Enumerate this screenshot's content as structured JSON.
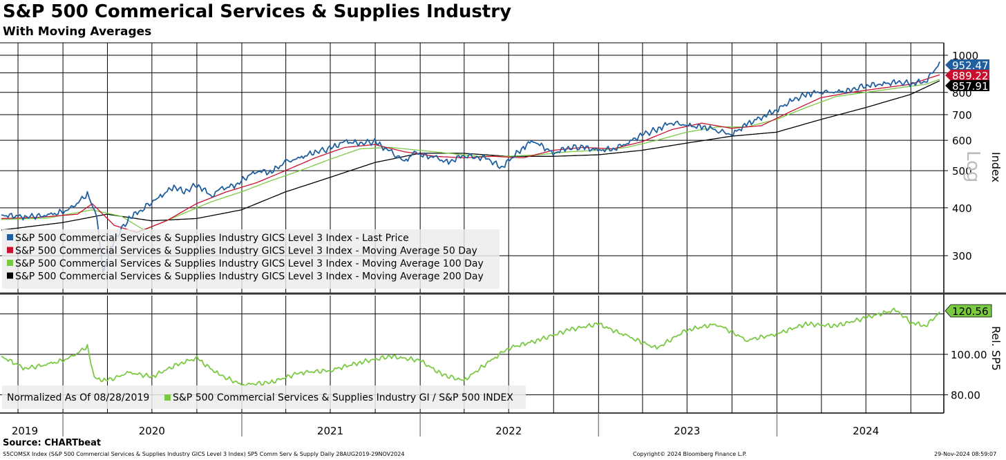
{
  "header": {
    "title": "S&P 500 Commerical Services & Supplies Industry",
    "subtitle": "With Moving Averages"
  },
  "footer": {
    "source": "Source: CHARTbeat",
    "description": "S5COMSX Index (S&P 500 Commercial Services & Supplies Industry GICS Level 3 Index) SP5 Comm Serv & Supply  Daily 28AUG2019-29NOV2024",
    "copyright": "Copyright© 2024 Bloomberg Finance L.P.",
    "timestamp": "29-Nov-2024 08:59:07"
  },
  "chart_data": [
    {
      "type": "line",
      "y_scale": "log",
      "ylabel": "Index",
      "scale_label": "Log",
      "ylim": [
        240,
        1000
      ],
      "yticks": [
        1000,
        900,
        800,
        700,
        600,
        500,
        400,
        300
      ],
      "grid": true,
      "legend_position": "bottom-left",
      "x_categories": [
        "2019",
        "2020",
        "2021",
        "2022",
        "2023",
        "2024"
      ],
      "x_range": [
        "2019-08-28",
        "2024-11-29"
      ],
      "last_values": [
        {
          "label": "952.47",
          "color": "#1f5fa0"
        },
        {
          "label": "889.22",
          "color": "#c8102e"
        },
        {
          "label": "857.91",
          "color": "#000000"
        }
      ],
      "series": [
        {
          "name": "S&P 500 Commercial Services & Supplies Industry GICS Level 3 Index - Last Price",
          "color": "#1f5fa0",
          "x": [
            "2019-08-28",
            "2019-10-15",
            "2019-12-01",
            "2020-01-15",
            "2020-02-20",
            "2020-03-10",
            "2020-03-23",
            "2020-04-15",
            "2020-05-15",
            "2020-06-08",
            "2020-07-15",
            "2020-08-15",
            "2020-09-05",
            "2020-10-01",
            "2020-11-01",
            "2020-11-15",
            "2020-12-20",
            "2021-01-31",
            "2021-02-28",
            "2021-03-31",
            "2021-04-30",
            "2021-05-31",
            "2021-06-30",
            "2021-07-31",
            "2021-08-31",
            "2021-09-30",
            "2021-10-31",
            "2021-11-30",
            "2021-12-20",
            "2022-01-31",
            "2022-02-28",
            "2022-03-31",
            "2022-04-30",
            "2022-05-15",
            "2022-06-16",
            "2022-07-31",
            "2022-08-20",
            "2022-09-30",
            "2022-10-31",
            "2022-11-30",
            "2022-12-31",
            "2023-01-31",
            "2023-02-28",
            "2023-03-31",
            "2023-04-30",
            "2023-05-31",
            "2023-06-30",
            "2023-07-31",
            "2023-08-31",
            "2023-09-30",
            "2023-10-27",
            "2023-11-30",
            "2023-12-31",
            "2024-01-31",
            "2024-02-29",
            "2024-03-31",
            "2024-04-30",
            "2024-05-31",
            "2024-06-30",
            "2024-07-31",
            "2024-08-31",
            "2024-09-30",
            "2024-10-31",
            "2024-11-29"
          ],
          "values": [
            383,
            379,
            382,
            395,
            435,
            380,
            275,
            330,
            375,
            395,
            425,
            455,
            440,
            460,
            430,
            445,
            460,
            500,
            495,
            525,
            540,
            560,
            570,
            595,
            590,
            595,
            560,
            530,
            555,
            540,
            525,
            550,
            540,
            540,
            510,
            575,
            600,
            555,
            575,
            575,
            565,
            570,
            590,
            620,
            640,
            670,
            655,
            650,
            640,
            620,
            655,
            690,
            720,
            760,
            790,
            805,
            800,
            810,
            835,
            840,
            850,
            845,
            855,
            952.47
          ]
        },
        {
          "name": "S&P 500 Commercial Services & Supplies Industry GICS Level 3 Index - Moving Average 50 Day",
          "color": "#c8102e",
          "x": [
            "2019-08-28",
            "2019-11-15",
            "2020-01-31",
            "2020-03-01",
            "2020-04-15",
            "2020-05-31",
            "2020-07-31",
            "2020-09-30",
            "2020-11-30",
            "2021-01-31",
            "2021-03-31",
            "2021-05-31",
            "2021-07-31",
            "2021-09-30",
            "2021-11-30",
            "2022-01-31",
            "2022-03-31",
            "2022-05-31",
            "2022-07-31",
            "2022-09-30",
            "2022-11-30",
            "2023-01-31",
            "2023-03-31",
            "2023-05-31",
            "2023-07-31",
            "2023-09-30",
            "2023-11-30",
            "2024-01-31",
            "2024-03-31",
            "2024-05-31",
            "2024-07-31",
            "2024-09-30",
            "2024-11-29"
          ],
          "values": [
            375,
            378,
            385,
            410,
            360,
            345,
            370,
            410,
            440,
            465,
            500,
            540,
            575,
            585,
            560,
            545,
            540,
            545,
            540,
            565,
            575,
            570,
            595,
            640,
            665,
            645,
            655,
            715,
            775,
            800,
            820,
            840,
            889.22
          ]
        },
        {
          "name": "S&P 500 Commercial Services & Supplies Industry GICS Level 3 Index - Moving Average 100 Day",
          "color": "#7ac943",
          "x": [
            "2019-08-28",
            "2019-11-30",
            "2020-02-29",
            "2020-04-30",
            "2020-06-15",
            "2020-08-31",
            "2020-10-31",
            "2020-12-31",
            "2021-02-28",
            "2021-04-30",
            "2021-06-30",
            "2021-08-31",
            "2021-10-31",
            "2021-12-31",
            "2022-02-28",
            "2022-04-30",
            "2022-06-30",
            "2022-08-31",
            "2022-10-31",
            "2022-12-31",
            "2023-02-28",
            "2023-04-30",
            "2023-06-30",
            "2023-08-31",
            "2023-10-31",
            "2023-12-31",
            "2024-02-29",
            "2024-04-30",
            "2024-06-30",
            "2024-08-31",
            "2024-10-31",
            "2024-11-29"
          ],
          "values": [
            373,
            376,
            395,
            380,
            350,
            385,
            415,
            440,
            470,
            500,
            535,
            570,
            575,
            565,
            555,
            545,
            545,
            550,
            560,
            565,
            575,
            600,
            630,
            650,
            650,
            680,
            730,
            780,
            800,
            820,
            840,
            865
          ]
        },
        {
          "name": "S&P 500 Commercial Services & Supplies Industry GICS Level 3 Index - Moving Average 200 Day",
          "color": "#000000",
          "x": [
            "2019-08-28",
            "2019-12-31",
            "2020-03-31",
            "2020-06-30",
            "2020-09-30",
            "2020-12-31",
            "2021-03-31",
            "2021-06-30",
            "2021-09-30",
            "2021-12-31",
            "2022-03-31",
            "2022-06-30",
            "2022-09-30",
            "2022-12-31",
            "2023-03-31",
            "2023-06-30",
            "2023-09-30",
            "2023-12-31",
            "2024-03-31",
            "2024-06-30",
            "2024-09-30",
            "2024-11-29"
          ],
          "values": [
            350,
            366,
            385,
            370,
            375,
            395,
            440,
            480,
            525,
            555,
            555,
            545,
            545,
            550,
            565,
            590,
            615,
            630,
            680,
            730,
            790,
            857.91
          ]
        }
      ]
    },
    {
      "type": "line",
      "ylabel": "Rel. SP5",
      "ylim": [
        71,
        129
      ],
      "yticks": [
        100.0,
        80.0
      ],
      "grid": true,
      "legend_position": "bottom-left",
      "legend_note": "Normalized As Of 08/28/2019",
      "last_value": {
        "label": "120.56",
        "color": "#7ac943"
      },
      "series": [
        {
          "name": "S&P 500 Commercial Services & Supplies Industry GI / S&P 500 INDEX",
          "color": "#7ac943",
          "x": [
            "2019-08-28",
            "2019-10-15",
            "2019-12-01",
            "2020-01-15",
            "2020-02-20",
            "2020-03-05",
            "2020-04-01",
            "2020-05-15",
            "2020-07-01",
            "2020-08-31",
            "2020-10-01",
            "2020-11-15",
            "2021-01-01",
            "2021-02-28",
            "2021-04-30",
            "2021-06-30",
            "2021-08-31",
            "2021-10-31",
            "2021-12-31",
            "2022-02-15",
            "2022-03-31",
            "2022-05-31",
            "2022-06-30",
            "2022-08-31",
            "2022-10-31",
            "2022-12-31",
            "2023-02-28",
            "2023-04-30",
            "2023-06-30",
            "2023-08-31",
            "2023-10-31",
            "2023-12-31",
            "2024-02-29",
            "2024-04-30",
            "2024-06-30",
            "2024-08-31",
            "2024-09-30",
            "2024-10-31",
            "2024-11-29"
          ],
          "values": [
            99,
            93,
            95,
            98,
            104,
            88,
            87,
            91,
            89,
            96,
            98,
            90,
            85,
            86,
            91,
            92,
            96,
            99,
            97,
            90,
            87,
            98,
            103,
            107,
            112,
            115,
            109,
            103,
            112,
            115,
            107,
            110,
            115,
            114,
            118,
            122,
            116,
            114,
            120.56
          ]
        }
      ]
    }
  ]
}
